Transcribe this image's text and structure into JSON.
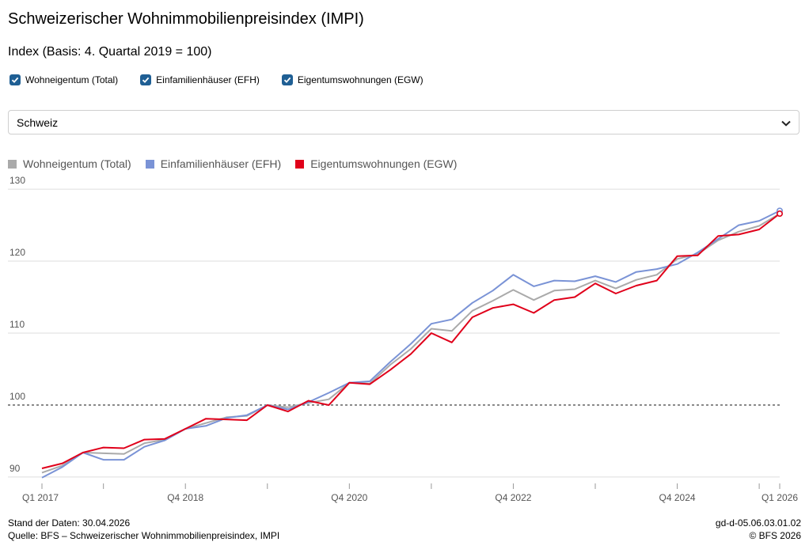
{
  "title": "Schweizerischer Wohnimmobilienpreisindex (IMPI)",
  "subtitle": "Index (Basis: 4. Quartal 2019 = 100)",
  "filters": [
    {
      "label": "Wohneigentum (Total)",
      "checked": true
    },
    {
      "label": "Einfamilienhäuser (EFH)",
      "checked": true
    },
    {
      "label": "Eigentumswohnungen (EGW)",
      "checked": true
    }
  ],
  "region_select": {
    "value": "Schweiz"
  },
  "footer": {
    "stand": "Stand der Daten: 30.04.2026",
    "quelle": "Quelle: BFS – Schweizerischer Wohnimmobilienpreisindex, IMPI",
    "code": "gd-d-05.06.03.01.02",
    "copyright": "© BFS 2026"
  },
  "chart_data": {
    "type": "line",
    "x_tick_labels": [
      "Q1 2017",
      "Q4 2018",
      "Q4 2020",
      "Q4 2022",
      "Q4 2024",
      "Q1 2026"
    ],
    "quarters": [
      "Q1 2017",
      "Q2 2017",
      "Q3 2017",
      "Q4 2017",
      "Q1 2018",
      "Q2 2018",
      "Q3 2018",
      "Q4 2018",
      "Q1 2019",
      "Q2 2019",
      "Q3 2019",
      "Q4 2019",
      "Q1 2020",
      "Q2 2020",
      "Q3 2020",
      "Q4 2020",
      "Q1 2021",
      "Q2 2021",
      "Q3 2021",
      "Q4 2021",
      "Q1 2022",
      "Q2 2022",
      "Q3 2022",
      "Q4 2022",
      "Q1 2023",
      "Q2 2023",
      "Q3 2023",
      "Q4 2023",
      "Q1 2024",
      "Q2 2024",
      "Q3 2024",
      "Q4 2024",
      "Q1 2025",
      "Q2 2025",
      "Q3 2025",
      "Q4 2025",
      "Q1 2026"
    ],
    "ylim": [
      89,
      131
    ],
    "y_ticks": [
      90,
      100,
      110,
      120,
      130
    ],
    "reference_line": 100,
    "grid": true,
    "legend_position": "top-left",
    "series": [
      {
        "name": "Wohneigentum (Total)",
        "color": "#aaaaaa",
        "values": [
          90.6,
          91.6,
          93.4,
          93.3,
          93.2,
          94.7,
          95.2,
          96.7,
          97.5,
          98.3,
          98.5,
          100,
          99.7,
          100.3,
          100.8,
          103.1,
          103.0,
          105.6,
          107.8,
          110.6,
          110.3,
          113.1,
          114.5,
          116.0,
          114.6,
          115.9,
          116.1,
          117.3,
          116.2,
          117.4,
          118.1,
          120.3,
          121.0,
          122.9,
          124.1,
          124.9,
          126.6
        ]
      },
      {
        "name": "Einfamilienhäuser (EFH)",
        "color": "#7a93d6",
        "values": [
          89.9,
          91.4,
          93.4,
          92.4,
          92.4,
          94.2,
          95.1,
          96.7,
          97.1,
          98.2,
          98.6,
          100,
          99.4,
          100.4,
          101.7,
          103.1,
          103.3,
          106.0,
          108.5,
          111.3,
          111.9,
          114.2,
          115.9,
          118.1,
          116.5,
          117.3,
          117.2,
          117.9,
          117.1,
          118.5,
          118.9,
          119.6,
          121.2,
          123.1,
          125.0,
          125.6,
          127.0
        ]
      },
      {
        "name": "Eigentumswohnungen (EGW)",
        "color": "#e0001a",
        "values": [
          91.2,
          91.9,
          93.4,
          94.1,
          94.0,
          95.2,
          95.3,
          96.7,
          98.1,
          98.0,
          97.9,
          100,
          99.1,
          100.6,
          100.0,
          103.1,
          102.9,
          104.9,
          107.1,
          110.0,
          108.7,
          112.2,
          113.5,
          114.0,
          112.8,
          114.6,
          115.0,
          116.9,
          115.5,
          116.6,
          117.3,
          120.7,
          120.8,
          123.5,
          123.7,
          124.4,
          126.6
        ]
      }
    ]
  }
}
